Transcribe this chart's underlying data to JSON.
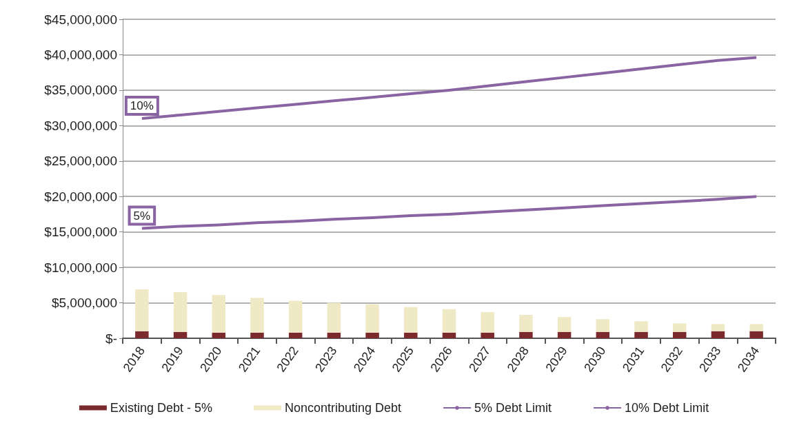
{
  "chart_data": {
    "type": "bar",
    "stacked": true,
    "grid": "y",
    "legend": "bottom",
    "categories": [
      "2018",
      "2019",
      "2020",
      "2021",
      "2022",
      "2023",
      "2024",
      "2025",
      "2026",
      "2027",
      "2028",
      "2029",
      "2030",
      "2031",
      "2032",
      "2033",
      "2034"
    ],
    "series": [
      {
        "name": "Existing Debt - 5%",
        "color": "#7b2b2e",
        "values": [
          1000000,
          900000,
          800000,
          800000,
          800000,
          800000,
          800000,
          800000,
          800000,
          800000,
          900000,
          900000,
          900000,
          900000,
          900000,
          1000000,
          1000000
        ]
      },
      {
        "name": "Noncontributing Debt",
        "color": "#efe9c6",
        "values": [
          5900000,
          5600000,
          5300000,
          4900000,
          4500000,
          4200000,
          4000000,
          3600000,
          3300000,
          2900000,
          2400000,
          2100000,
          1800000,
          1500000,
          1200000,
          1000000,
          1000000
        ]
      },
      {
        "name": "5% Debt Limit",
        "type": "line",
        "color": "#8a63a3",
        "values": [
          15500000,
          15800000,
          16000000,
          16300000,
          16500000,
          16800000,
          17000000,
          17300000,
          17500000,
          17800000,
          18100000,
          18400000,
          18700000,
          19000000,
          19300000,
          19600000,
          20000000
        ]
      },
      {
        "name": "10% Debt Limit",
        "type": "line",
        "color": "#8a63a3",
        "values": [
          31000000,
          31500000,
          32000000,
          32500000,
          33000000,
          33500000,
          34000000,
          34500000,
          35000000,
          35600000,
          36200000,
          36800000,
          37400000,
          38000000,
          38600000,
          39200000,
          39600000
        ]
      }
    ],
    "ylim": [
      0,
      45000000
    ],
    "yticks": [
      {
        "value": 0,
        "label": "$-"
      },
      {
        "value": 5000000,
        "label": "$5,000,000"
      },
      {
        "value": 10000000,
        "label": "$10,000,000"
      },
      {
        "value": 15000000,
        "label": "$15,000,000"
      },
      {
        "value": 20000000,
        "label": "$20,000,000"
      },
      {
        "value": 25000000,
        "label": "$25,000,000"
      },
      {
        "value": 30000000,
        "label": "$30,000,000"
      },
      {
        "value": 35000000,
        "label": "$35,000,000"
      },
      {
        "value": 40000000,
        "label": "$40,000,000"
      },
      {
        "value": 45000000,
        "label": "$45,000,000"
      }
    ],
    "annotations": [
      {
        "text": "10%",
        "x": "2018",
        "y": 31000000
      },
      {
        "text": "5%",
        "x": "2018",
        "y": 15500000
      }
    ]
  }
}
